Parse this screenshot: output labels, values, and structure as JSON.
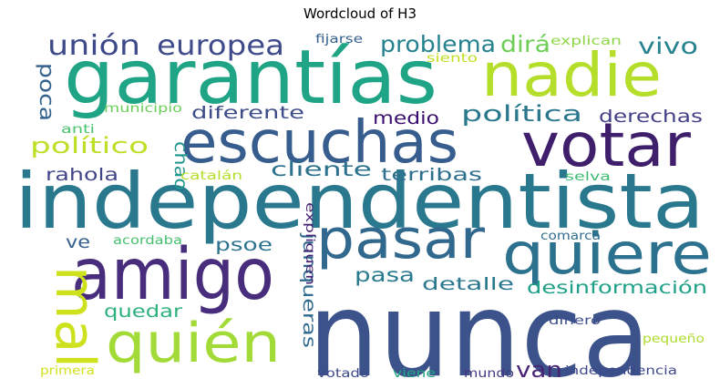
{
  "chart_data": {
    "type": "wordcloud",
    "title": "Wordcloud of H3",
    "words": [
      {
        "text": "garantías",
        "color": "#20a486"
      },
      {
        "text": "nunca",
        "color": "#3b528b"
      },
      {
        "text": "independentista",
        "color": "#2a788e"
      },
      {
        "text": "escuchas",
        "color": "#365d8d"
      },
      {
        "text": "amigo",
        "color": "#472d7b"
      },
      {
        "text": "votar",
        "color": "#3f1f6c"
      },
      {
        "text": "nadie",
        "color": "#b5de2b"
      },
      {
        "text": "pasar",
        "color": "#31688e"
      },
      {
        "text": "quiere",
        "color": "#2c728e"
      },
      {
        "text": "quién",
        "color": "#a2da37"
      },
      {
        "text": "mal",
        "color": "#cde11d"
      },
      {
        "text": "unión",
        "color": "#3e4a89"
      },
      {
        "text": "europea",
        "color": "#3e4a89"
      },
      {
        "text": "problema",
        "color": "#26828e"
      },
      {
        "text": "dirá",
        "color": "#6ece58"
      },
      {
        "text": "vivo",
        "color": "#26828e"
      },
      {
        "text": "poca",
        "color": "#33638d"
      },
      {
        "text": "político",
        "color": "#bddf26"
      },
      {
        "text": "política",
        "color": "#2a788e"
      },
      {
        "text": "diferente",
        "color": "#3e4c8a"
      },
      {
        "text": "medio",
        "color": "#3b0f70"
      },
      {
        "text": "derechas",
        "color": "#424086"
      },
      {
        "text": "chao",
        "color": "#1f958b"
      },
      {
        "text": "cliente",
        "color": "#2c728e"
      },
      {
        "text": "rahola",
        "color": "#414487"
      },
      {
        "text": "terribas",
        "color": "#2e6f8e"
      },
      {
        "text": "ve",
        "color": "#35608d"
      },
      {
        "text": "psoe",
        "color": "#2c728e"
      },
      {
        "text": "junqueras",
        "color": "#306a8e"
      },
      {
        "text": "pasa",
        "color": "#297a8e"
      },
      {
        "text": "detalle",
        "color": "#2a778e"
      },
      {
        "text": "desinformación",
        "color": "#1fa088"
      },
      {
        "text": "quedar",
        "color": "#2db27d"
      },
      {
        "text": "van",
        "color": "#482475"
      },
      {
        "text": "fijarse",
        "color": "#34608d"
      },
      {
        "text": "explican",
        "color": "#8ed645"
      },
      {
        "text": "siento",
        "color": "#c2df23"
      },
      {
        "text": "anti",
        "color": "#4ac16d"
      },
      {
        "text": "municipio",
        "color": "#6ccd5a"
      },
      {
        "text": "catalán",
        "color": "#b5de2b"
      },
      {
        "text": "selva",
        "color": "#3fbc73"
      },
      {
        "text": "acordaba",
        "color": "#46c06f"
      },
      {
        "text": "expliquen",
        "color": "#482475"
      },
      {
        "text": "comarca",
        "color": "#2e6e8e"
      },
      {
        "text": "dinero",
        "color": "#3d4e8a"
      },
      {
        "text": "pequeño",
        "color": "#addc30"
      },
      {
        "text": "primera",
        "color": "#d2e21b"
      },
      {
        "text": "votado",
        "color": "#3e4989"
      },
      {
        "text": "viene",
        "color": "#22a785"
      },
      {
        "text": "mundo",
        "color": "#453781"
      },
      {
        "text": "independencia",
        "color": "#3f4889"
      }
    ]
  }
}
